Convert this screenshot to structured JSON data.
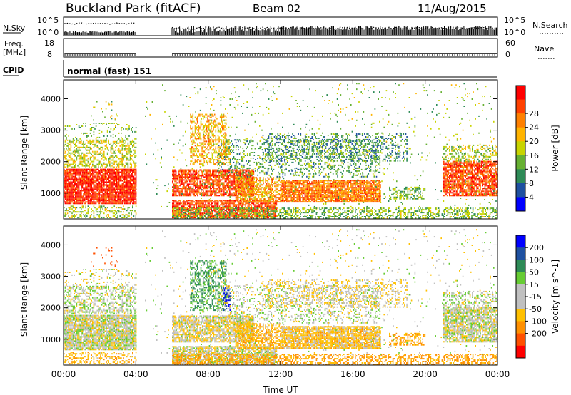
{
  "header": {
    "title": "Buckland Park (fitACF)",
    "beam": "Beam 02",
    "date": "11/Aug/2015"
  },
  "top_panels": {
    "noise": {
      "left_label": "N.Sky",
      "right_label": "N.Search",
      "left_ticks": [
        "10^5",
        "10^0"
      ],
      "right_ticks": [
        "10^5",
        "10^0"
      ]
    },
    "freq": {
      "left_label_1": "Freq.",
      "left_label_2": "[MHz]",
      "right_label": "Nave",
      "left_ticks": [
        "18",
        "8"
      ],
      "right_ticks": [
        "60",
        "0"
      ]
    },
    "cpid": {
      "label": "CPID",
      "text": "normal (fast) 151"
    }
  },
  "colors": {
    "power": [
      "#0000ff",
      "#1e50a0",
      "#2e8b57",
      "#66b032",
      "#c8d400",
      "#ffb400",
      "#ff8000",
      "#ff4000",
      "#ff0000"
    ],
    "velocity": [
      "#ff0000",
      "#ff5000",
      "#ff9000",
      "#ffc000",
      "#c0c0c0",
      "#c0c0c0",
      "#66cc33",
      "#2e8b57",
      "#1e50a0",
      "#0000ff"
    ]
  },
  "chart_data": [
    {
      "type": "heatmap",
      "name": "power",
      "xlabel": "",
      "ylabel": "Slant Range [km]",
      "ylim": [
        180,
        4600
      ],
      "y_ticks": [
        1000,
        2000,
        3000,
        4000
      ],
      "x_hours": [
        0,
        4,
        8,
        12,
        16,
        20,
        24
      ],
      "x_tick_labels": [
        "00:00",
        "04:00",
        "08:00",
        "12:00",
        "16:00",
        "20:00",
        "00:00"
      ],
      "colorbar": {
        "label": "Power [dB]",
        "ticks": [
          "4",
          "8",
          "12",
          "16",
          "20",
          "24",
          "28"
        ],
        "range": [
          0,
          30
        ]
      }
    },
    {
      "type": "heatmap",
      "name": "velocity",
      "xlabel": "Time UT",
      "ylabel": "Slant Range [km]",
      "ylim": [
        180,
        4600
      ],
      "y_ticks": [
        1000,
        2000,
        3000,
        4000
      ],
      "x_hours": [
        0,
        4,
        8,
        12,
        16,
        20,
        24
      ],
      "x_tick_labels": [
        "00:00",
        "04:00",
        "08:00",
        "12:00",
        "16:00",
        "20:00",
        "00:00"
      ],
      "colorbar": {
        "label": "Velocity [m s^-1]",
        "ticks": [
          "200",
          "100",
          "50",
          "15",
          "-15",
          "-50",
          "-100",
          "-200"
        ]
      }
    }
  ],
  "echo_regions": [
    {
      "t0": 0.0,
      "t1": 4.0,
      "r0": 650,
      "r1": 1750,
      "p": 27,
      "v": 0,
      "d": 0.9
    },
    {
      "t0": 0.0,
      "t1": 4.0,
      "r0": 1800,
      "r1": 2700,
      "p": 15,
      "v": 5,
      "d": 0.45
    },
    {
      "t0": 0.0,
      "t1": 4.0,
      "r0": 2700,
      "r1": 3200,
      "p": 12,
      "v": -5,
      "d": 0.15
    },
    {
      "t0": 0.0,
      "t1": 4.0,
      "r0": 200,
      "r1": 600,
      "p": 14,
      "v": -40,
      "d": 0.35
    },
    {
      "t0": 1.5,
      "t1": 3.0,
      "r0": 3300,
      "r1": 3900,
      "p": 14,
      "v": -150,
      "d": 0.06
    },
    {
      "t0": 6.0,
      "t1": 10.5,
      "r0": 900,
      "r1": 1750,
      "p": 25,
      "v": -10,
      "d": 0.75
    },
    {
      "t0": 6.0,
      "t1": 11.8,
      "r0": 200,
      "r1": 750,
      "p": 25,
      "v": -5,
      "d": 0.8
    },
    {
      "t0": 7.0,
      "t1": 9.0,
      "r0": 1900,
      "r1": 3500,
      "p": 19,
      "v": 60,
      "d": 0.45
    },
    {
      "t0": 8.8,
      "t1": 9.2,
      "r0": 1900,
      "r1": 2700,
      "p": 18,
      "v": 200,
      "d": 0.4
    },
    {
      "t0": 9.5,
      "t1": 12.0,
      "r0": 700,
      "r1": 1500,
      "p": 20,
      "v": -40,
      "d": 0.6
    },
    {
      "t0": 12.0,
      "t1": 17.5,
      "r0": 700,
      "r1": 1400,
      "p": 22,
      "v": -30,
      "d": 0.85
    },
    {
      "t0": 8.5,
      "t1": 17.5,
      "r0": 1500,
      "r1": 2700,
      "p": 10,
      "v": 5,
      "d": 0.22
    },
    {
      "t0": 11.0,
      "t1": 19.0,
      "r0": 2000,
      "r1": 2900,
      "p": 9,
      "v": -15,
      "d": 0.28
    },
    {
      "t0": 18.0,
      "t1": 20.0,
      "r0": 800,
      "r1": 1200,
      "p": 12,
      "v": -60,
      "d": 0.4
    },
    {
      "t0": 21.0,
      "t1": 24.0,
      "r0": 900,
      "r1": 2000,
      "p": 25,
      "v": 0,
      "d": 0.8
    },
    {
      "t0": 21.0,
      "t1": 24.0,
      "r0": 2000,
      "r1": 2500,
      "p": 14,
      "v": 5,
      "d": 0.35
    },
    {
      "t0": 6.0,
      "t1": 24.0,
      "r0": 180,
      "r1": 500,
      "p": 12,
      "v": -60,
      "d": 0.45
    },
    {
      "t0": 4.5,
      "t1": 24.0,
      "r0": 500,
      "r1": 4500,
      "p": 13,
      "v": 0,
      "d": 0.025
    }
  ]
}
